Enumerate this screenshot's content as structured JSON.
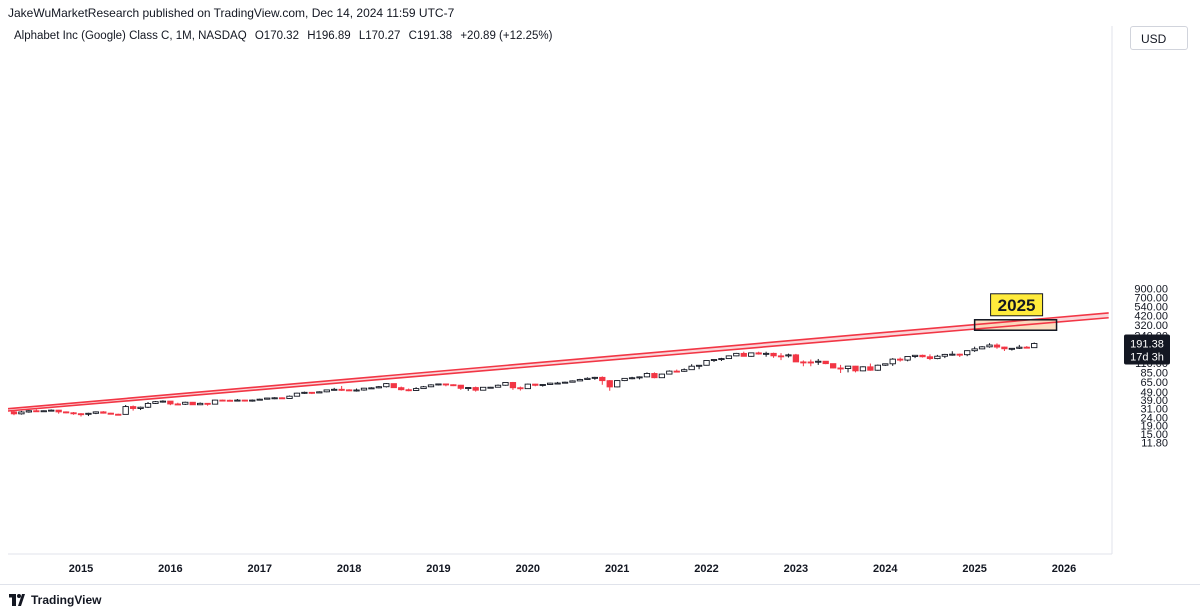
{
  "header": {
    "publisher": "JakeWuMarketResearch published on TradingView.com, Dec 14, 2024 11:59 UTC-7"
  },
  "symbol": {
    "name": "Alphabet Inc (Google) Class C, 1M, NASDAQ",
    "open": "O170.32",
    "high": "H196.89",
    "low": "L170.27",
    "close": "C191.38",
    "change": "+20.89 (+12.25%)"
  },
  "currency": "USD",
  "price_label": {
    "value": "191.38",
    "countdown": "17d 3h"
  },
  "annotation_label": "2025",
  "footer": {
    "brand": "TradingView"
  },
  "colors": {
    "up": "#ffffff",
    "up_border": "#131722",
    "down": "#f23645",
    "channel_line": "#f23645",
    "channel_fill": "#f8c9cd",
    "target_fill": "#fad7b5",
    "label_bg": "#ffeb3b"
  },
  "chart_data": {
    "type": "candlestick",
    "scale": "log",
    "ylim": [
      11.8,
      1000
    ],
    "y_ticks": [
      "900.00",
      "700.00",
      "540.00",
      "420.00",
      "320.00",
      "240.00",
      "140.00",
      "110.00",
      "85.00",
      "65.00",
      "49.00",
      "39.00",
      "31.00",
      "24.00",
      "19.00",
      "15.00",
      "11.80"
    ],
    "x_ticks": [
      "2015",
      "2016",
      "2017",
      "2018",
      "2019",
      "2020",
      "2021",
      "2022",
      "2023",
      "2024",
      "2025",
      "2026"
    ],
    "channel": {
      "upper": [
        [
          "2014-03",
          30.5
        ],
        [
          "2026-07",
          452
        ]
      ],
      "lower": [
        [
          "2014-03",
          28.6
        ],
        [
          "2026-07",
          395
        ]
      ]
    },
    "target_box": {
      "x": [
        "2025-01",
        "2025-12"
      ],
      "y": [
        278,
        373
      ],
      "label": "2025"
    },
    "series": [
      {
        "start": "2014-04",
        "ohlc": [
          [
            28.0,
            29.0,
            25.5,
            26.5
          ],
          [
            26.5,
            28.8,
            25.9,
            27.9
          ],
          [
            27.9,
            29.4,
            27.3,
            28.9
          ],
          [
            28.9,
            30.0,
            28.2,
            28.7
          ],
          [
            28.7,
            29.2,
            28.3,
            28.9
          ],
          [
            28.9,
            30.0,
            28.6,
            29.4
          ],
          [
            29.4,
            29.6,
            26.6,
            28.0
          ],
          [
            28.0,
            28.4,
            26.9,
            27.3
          ],
          [
            27.3,
            27.9,
            25.8,
            26.6
          ],
          [
            26.6,
            27.0,
            24.6,
            26.5
          ],
          [
            26.5,
            27.3,
            24.9,
            26.9
          ],
          [
            26.9,
            28.4,
            26.3,
            28.0
          ],
          [
            28.0,
            28.6,
            26.7,
            27.0
          ],
          [
            27.0,
            27.3,
            26.1,
            26.2
          ],
          [
            26.2,
            26.6,
            25.7,
            26.1
          ],
          [
            26.1,
            34.0,
            26.0,
            32.5
          ],
          [
            32.5,
            33.5,
            29.0,
            30.8
          ],
          [
            30.8,
            32.5,
            29.5,
            31.9
          ],
          [
            31.9,
            37.0,
            31.2,
            35.5
          ],
          [
            35.5,
            38.0,
            35.0,
            37.3
          ],
          [
            37.3,
            38.8,
            36.3,
            37.9
          ],
          [
            37.9,
            37.8,
            33.8,
            35.0
          ],
          [
            35.0,
            36.2,
            34.4,
            34.7
          ],
          [
            34.7,
            37.3,
            34.0,
            36.7
          ],
          [
            36.7,
            37.0,
            34.2,
            34.2
          ],
          [
            34.2,
            36.5,
            33.9,
            35.6
          ],
          [
            35.6,
            35.7,
            33.3,
            34.8
          ],
          [
            34.8,
            39.4,
            34.7,
            39.0
          ],
          [
            39.0,
            39.5,
            38.0,
            38.8
          ],
          [
            38.8,
            39.5,
            37.8,
            38.4
          ],
          [
            38.4,
            40.2,
            37.8,
            39.0
          ],
          [
            39.0,
            39.3,
            37.4,
            38.0
          ],
          [
            38.0,
            39.7,
            37.3,
            39.0
          ],
          [
            39.0,
            40.6,
            38.8,
            40.0
          ],
          [
            40.0,
            41.5,
            39.6,
            41.3
          ],
          [
            41.3,
            42.3,
            40.0,
            41.6
          ],
          [
            41.6,
            42.2,
            40.2,
            40.8
          ],
          [
            40.8,
            44.4,
            40.6,
            43.5
          ],
          [
            43.5,
            48.0,
            43.3,
            47.4
          ],
          [
            47.4,
            49.5,
            46.5,
            48.5
          ],
          [
            48.5,
            49.0,
            46.2,
            47.7
          ],
          [
            47.7,
            50.0,
            47.6,
            49.2
          ],
          [
            49.2,
            52.0,
            48.6,
            51.9
          ],
          [
            51.9,
            55.0,
            51.0,
            52.8
          ],
          [
            52.8,
            58.0,
            50.5,
            52.0
          ],
          [
            52.0,
            53.0,
            50.2,
            51.1
          ],
          [
            51.1,
            54.0,
            49.5,
            51.8
          ],
          [
            51.8,
            55.0,
            50.7,
            54.5
          ],
          [
            54.5,
            56.0,
            53.5,
            55.0
          ],
          [
            55.0,
            58.0,
            54.2,
            56.8
          ],
          [
            56.8,
            63.0,
            55.5,
            62.0
          ],
          [
            62.0,
            61.0,
            55.0,
            55.3
          ],
          [
            55.3,
            57.0,
            51.0,
            52.2
          ],
          [
            52.2,
            54.0,
            50.0,
            51.1
          ],
          [
            51.1,
            56.0,
            50.6,
            53.9
          ],
          [
            53.9,
            58.0,
            53.6,
            56.7
          ],
          [
            56.7,
            61.0,
            56.0,
            59.8
          ],
          [
            59.8,
            62.0,
            58.8,
            61.4
          ],
          [
            61.4,
            61.6,
            57.5,
            60.1
          ],
          [
            60.1,
            60.8,
            57.8,
            59.3
          ],
          [
            59.3,
            59.8,
            52.0,
            54.3
          ],
          [
            54.3,
            55.8,
            50.5,
            55.5
          ],
          [
            55.5,
            57.0,
            49.5,
            51.5
          ],
          [
            51.5,
            56.0,
            51.2,
            55.9
          ],
          [
            55.9,
            56.5,
            54.2,
            56.0
          ],
          [
            56.0,
            60.5,
            55.8,
            59.2
          ],
          [
            59.2,
            64.0,
            58.5,
            64.0
          ],
          [
            64.0,
            65.0,
            52.0,
            55.2
          ],
          [
            55.2,
            57.0,
            51.0,
            53.8
          ],
          [
            53.8,
            62.0,
            53.6,
            61.1
          ],
          [
            61.1,
            61.6,
            57.5,
            59.1
          ],
          [
            59.1,
            60.8,
            57.0,
            60.5
          ],
          [
            60.5,
            63.5,
            59.8,
            62.8
          ],
          [
            62.8,
            65.0,
            61.5,
            63.0
          ],
          [
            63.0,
            65.5,
            62.5,
            64.5
          ],
          [
            64.5,
            68.0,
            64.0,
            66.9
          ],
          [
            66.9,
            71.0,
            66.4,
            69.6
          ],
          [
            69.6,
            74.0,
            69.0,
            71.9
          ],
          [
            71.9,
            75.0,
            69.0,
            73.9
          ],
          [
            73.9,
            76.0,
            60.0,
            67.4
          ],
          [
            67.4,
            68.5,
            50.7,
            56.5
          ],
          [
            56.5,
            68.0,
            55.8,
            67.5
          ],
          [
            67.5,
            72.0,
            66.5,
            71.8
          ],
          [
            71.8,
            75.0,
            70.0,
            73.1
          ],
          [
            73.1,
            76.0,
            69.8,
            74.9
          ],
          [
            74.9,
            85.0,
            74.0,
            82.4
          ],
          [
            82.4,
            85.0,
            72.0,
            73.2
          ],
          [
            73.2,
            82.0,
            72.5,
            81.0
          ],
          [
            81.0,
            90.0,
            80.5,
            88.1
          ],
          [
            88.1,
            92.0,
            85.0,
            87.6
          ],
          [
            87.6,
            95.0,
            86.5,
            91.7
          ],
          [
            91.7,
            107.0,
            91.0,
            101.1
          ],
          [
            101.1,
            104.0,
            93.0,
            103.8
          ],
          [
            103.8,
            120.0,
            103.0,
            118.8
          ],
          [
            118.8,
            122.0,
            114.0,
            122.0
          ],
          [
            122.0,
            128.0,
            117.0,
            125.3
          ],
          [
            125.3,
            137.0,
            125.0,
            135.2
          ],
          [
            135.2,
            147.0,
            134.0,
            145.0
          ],
          [
            145.0,
            152.0,
            133.0,
            133.5
          ],
          [
            133.5,
            148.0,
            132.0,
            147.1
          ],
          [
            147.1,
            152.0,
            140.0,
            142.5
          ],
          [
            142.5,
            152.0,
            132.0,
            145.1
          ],
          [
            145.1,
            148.0,
            128.0,
            135.3
          ],
          [
            135.3,
            146.0,
            120.0,
            135.1
          ],
          [
            135.1,
            144.0,
            129.0,
            139.1
          ],
          [
            139.1,
            143.0,
            115.0,
            114.1
          ],
          [
            114.1,
            119.0,
            101.0,
            113.9
          ],
          [
            113.9,
            122.0,
            101.0,
            113.4
          ],
          [
            113.4,
            124.0,
            105.0,
            116.3
          ],
          [
            116.3,
            117.0,
            107.0,
            108.7
          ],
          [
            108.7,
            109.0,
            95.0,
            96.2
          ],
          [
            96.2,
            105.0,
            83.5,
            94.7
          ],
          [
            94.7,
            102.0,
            85.0,
            101.3
          ],
          [
            101.3,
            102.0,
            85.0,
            88.7
          ],
          [
            88.7,
            101.0,
            88.0,
            99.4
          ],
          [
            99.4,
            109.0,
            89.0,
            90.3
          ],
          [
            90.3,
            106.0,
            89.0,
            104.0
          ],
          [
            104.0,
            109.0,
            102.0,
            108.2
          ],
          [
            108.2,
            127.0,
            102.0,
            123.4
          ],
          [
            123.4,
            129.0,
            115.0,
            120.1
          ],
          [
            120.1,
            133.0,
            116.0,
            133.0
          ],
          [
            133.0,
            138.0,
            127.0,
            137.4
          ],
          [
            137.4,
            140.0,
            129.0,
            131.9
          ],
          [
            131.9,
            141.0,
            120.0,
            125.3
          ],
          [
            125.3,
            139.0,
            123.0,
            133.9
          ],
          [
            133.9,
            143.0,
            127.0,
            140.9
          ],
          [
            140.9,
            154.0,
            136.0,
            141.8
          ],
          [
            141.8,
            144.0,
            131.0,
            139.8
          ],
          [
            139.8,
            158.0,
            134.0,
            156.5
          ],
          [
            156.5,
            175.0,
            151.0,
            164.6
          ],
          [
            164.6,
            178.0,
            163.0,
            174.4
          ],
          [
            174.4,
            193.0,
            170.0,
            183.4
          ],
          [
            183.4,
            192.0,
            165.0,
            173.1
          ],
          [
            173.1,
            175.0,
            155.0,
            165.1
          ],
          [
            165.1,
            168.0,
            157.0,
            167.2
          ],
          [
            167.2,
            184.0,
            164.0,
            172.7
          ],
          [
            172.7,
            178.0,
            168.0,
            170.3
          ],
          [
            170.3,
            196.9,
            170.3,
            191.4
          ]
        ]
      }
    ]
  }
}
